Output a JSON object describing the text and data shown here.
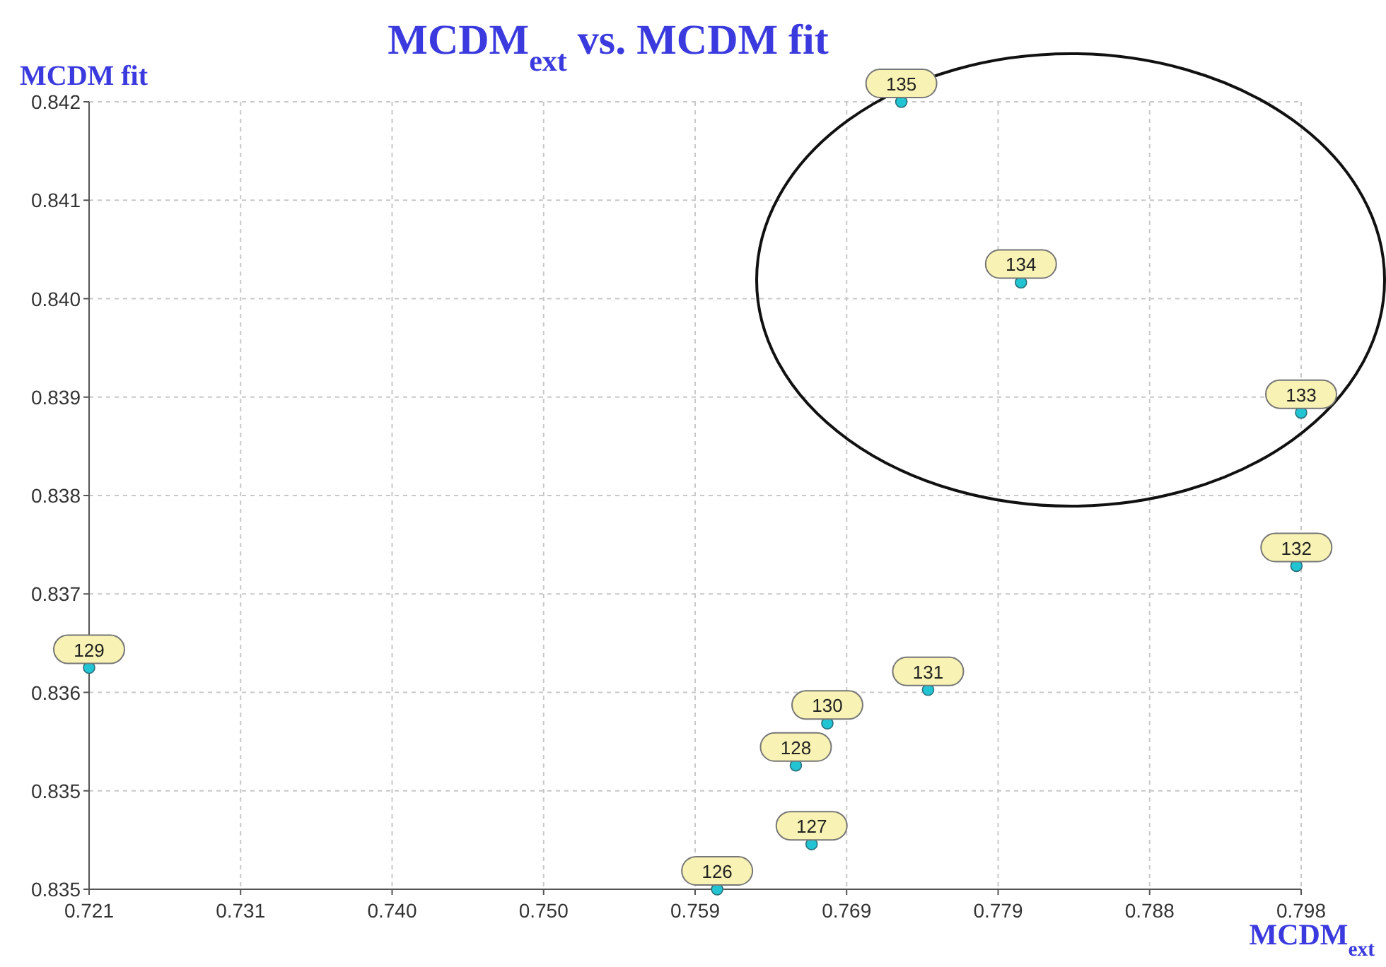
{
  "chart_data": {
    "type": "scatter",
    "title": "MCDM$_{ext}$ vs. MCDM fit",
    "xlabel": "MCDM$_{ext}$",
    "ylabel": "MCDM fit",
    "x": [
      0.7609,
      0.7669,
      0.7659,
      0.721,
      0.7679,
      0.7743,
      0.7977,
      0.798,
      0.7802,
      0.7726
    ],
    "series": [
      {
        "color": "#22c4d4",
        "values": [
          0.8345,
          0.83493,
          0.83568,
          0.83661,
          0.83608,
          0.8364,
          0.83758,
          0.83904,
          0.84028,
          0.842
        ]
      }
    ],
    "marker": "circle",
    "grid": true,
    "xlim": [
      0.721,
      0.798
    ],
    "xticks": [
      0.721,
      {
        "value": 0.730625,
        "label": "0.731"
      },
      {
        "value": 0.74025,
        "label": "0.740"
      },
      {
        "value": 0.749875,
        "label": "0.750"
      },
      {
        "value": 0.7595,
        "label": "0.759"
      },
      {
        "value": 0.769125,
        "label": "0.769"
      },
      {
        "value": 0.77875,
        "label": "0.779"
      },
      {
        "value": 0.788375,
        "label": "0.788"
      },
      0.798
    ],
    "ylim": [
      0.8345,
      0.842
    ],
    "yticks": [
      {
        "value": 0.8345,
        "label": "0.835"
      },
      {
        "value": 0.8354375,
        "label": "0.835"
      },
      {
        "value": 0.836375,
        "label": "0.836"
      },
      {
        "value": 0.8373125,
        "label": "0.837"
      },
      {
        "value": 0.83825,
        "label": "0.838"
      },
      {
        "value": 0.8391875,
        "label": "0.839"
      },
      {
        "value": 0.840125,
        "label": "0.840"
      },
      {
        "value": 0.8410625,
        "label": "0.841"
      },
      0.842
    ],
    "annotations": [
      {
        "text": "126",
        "x": 0.7609,
        "y": 0.8345
      },
      {
        "text": "127",
        "x": 0.7669,
        "y": 0.83493
      },
      {
        "text": "128",
        "x": 0.7659,
        "y": 0.83568
      },
      {
        "text": "129",
        "x": 0.721,
        "y": 0.83661
      },
      {
        "text": "130",
        "x": 0.7679,
        "y": 0.83608
      },
      {
        "text": "131",
        "x": 0.7743,
        "y": 0.8364
      },
      {
        "text": "132",
        "x": 0.7977,
        "y": 0.83758
      },
      {
        "text": "133",
        "x": 0.798,
        "y": 0.83904
      },
      {
        "text": "134",
        "x": 0.7802,
        "y": 0.84028
      },
      {
        "text": "135",
        "x": 0.7726,
        "y": 0.842
      }
    ]
  }
}
